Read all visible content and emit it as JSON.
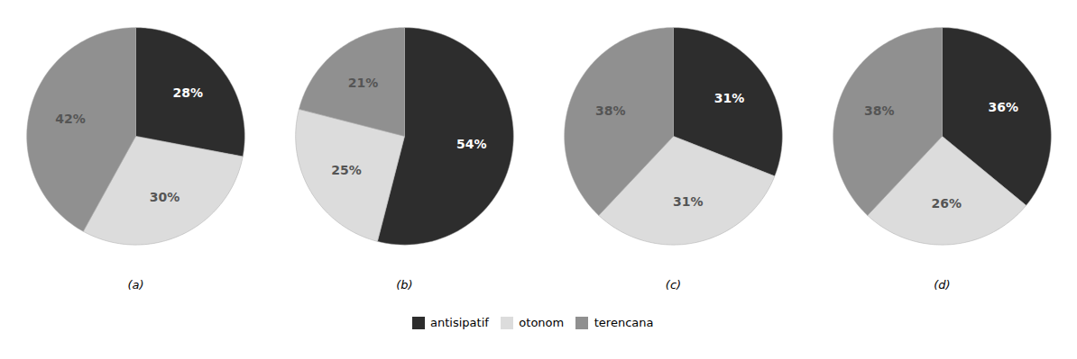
{
  "chart_data": [
    {
      "type": "pie",
      "title": "(a)",
      "categories": [
        "antisipatif",
        "otonom",
        "terencana"
      ],
      "values": [
        28,
        30,
        42
      ],
      "value_labels": [
        "28%",
        "30%",
        "42%"
      ],
      "colors": [
        "#2d2d2d",
        "#dcdcdc",
        "#909090"
      ],
      "data_labels": true,
      "legend": "bottom"
    },
    {
      "type": "pie",
      "title": "(b)",
      "categories": [
        "antisipatif",
        "otonom",
        "terencana"
      ],
      "values": [
        54,
        25,
        21
      ],
      "value_labels": [
        "54%",
        "25%",
        "21%"
      ],
      "colors": [
        "#2d2d2d",
        "#dcdcdc",
        "#909090"
      ],
      "data_labels": true,
      "legend": "bottom"
    },
    {
      "type": "pie",
      "title": "(c)",
      "categories": [
        "antisipatif",
        "otonom",
        "terencana"
      ],
      "values": [
        31,
        31,
        38
      ],
      "value_labels": [
        "31%",
        "31%",
        "38%"
      ],
      "colors": [
        "#2d2d2d",
        "#dcdcdc",
        "#909090"
      ],
      "data_labels": true,
      "legend": "bottom"
    },
    {
      "type": "pie",
      "title": "(d)",
      "categories": [
        "antisipatif",
        "otonom",
        "terencana"
      ],
      "values": [
        36,
        26,
        38
      ],
      "value_labels": [
        "36%",
        "26%",
        "38%"
      ],
      "colors": [
        "#2d2d2d",
        "#dcdcdc",
        "#909090"
      ],
      "data_labels": true,
      "legend": "bottom"
    }
  ]
}
